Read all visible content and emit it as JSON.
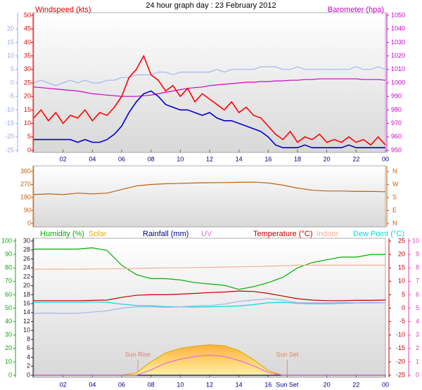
{
  "title": "24 hour graph day : 23 February 2012",
  "chart_data": [
    {
      "type": "line",
      "ylabel": "Windspeed (kts)",
      "y2label": "Barometer (hpa)",
      "x": [
        0,
        0.5,
        1,
        1.5,
        2,
        2.5,
        3,
        3.5,
        4,
        4.5,
        5,
        5.5,
        6,
        6.5,
        7,
        7.5,
        8,
        8.5,
        9,
        9.5,
        10,
        10.5,
        11,
        11.5,
        12,
        12.5,
        13,
        13.5,
        14,
        14.5,
        15,
        15.5,
        16,
        16.5,
        17,
        17.5,
        18,
        18.5,
        19,
        19.5,
        20,
        20.5,
        21,
        21.5,
        22,
        22.5,
        23,
        23.5,
        24
      ],
      "xlim": [
        0,
        24
      ],
      "xticks": [
        {
          "value": 2,
          "label": "02"
        },
        {
          "value": 4,
          "label": "04"
        },
        {
          "value": 6,
          "label": "06"
        },
        {
          "value": 8,
          "label": "08"
        },
        10,
        12,
        14,
        16,
        18,
        20,
        22,
        {
          "value": 24,
          "label": "00"
        }
      ],
      "ylim": [
        0,
        50
      ],
      "yticks": [
        0,
        5,
        10,
        15,
        20,
        25,
        30,
        35,
        40,
        45,
        50
      ],
      "ycolor": "#e00000",
      "y2lim": [
        950,
        1050
      ],
      "y2ticks": [
        950,
        960,
        970,
        980,
        990,
        1000,
        1010,
        1020,
        1030,
        1040,
        1050
      ],
      "y2color": "#cc00cc",
      "y3lim": [
        -25,
        25
      ],
      "y3ticks": [
        20,
        15,
        10,
        5,
        0,
        -5,
        -10,
        -15,
        -20,
        -25
      ],
      "y3color": "#9aa8e8",
      "series": [
        {
          "color": "#aab4ee",
          "axis": "y3",
          "values": [
            0,
            1,
            0,
            -1,
            0,
            1,
            0,
            1,
            0,
            0,
            1,
            1,
            2,
            2,
            3,
            3,
            3,
            4,
            4,
            3,
            4,
            4,
            4,
            4,
            4,
            5,
            4,
            5,
            5,
            5,
            5,
            6,
            6,
            6,
            5,
            5,
            6,
            5,
            5,
            5,
            5,
            5,
            5,
            5,
            6,
            5,
            5,
            6,
            5
          ]
        },
        {
          "color": "#cc00cc",
          "axis": "y2",
          "values": [
            997,
            996.5,
            996,
            995.5,
            995,
            994.5,
            994,
            993,
            992,
            991.5,
            991,
            990.5,
            990,
            990,
            990,
            990.5,
            991,
            992,
            993,
            994,
            995,
            996,
            996.5,
            997,
            998,
            998.5,
            999,
            999.5,
            1000,
            1000.5,
            1000.5,
            1001,
            1001,
            1001.5,
            1001.5,
            1002,
            1002,
            1002.5,
            1002.5,
            1003,
            1003,
            1003,
            1003,
            1003,
            1003,
            1002.5,
            1002.5,
            1002.5,
            1002
          ]
        },
        {
          "color": "#ff0000",
          "axis": "y",
          "values": [
            12,
            15,
            11,
            14,
            10,
            13,
            12,
            15,
            11,
            14,
            13,
            16,
            20,
            27,
            30,
            35,
            28,
            26,
            22,
            24,
            20,
            23,
            18,
            21,
            19,
            17,
            15,
            18,
            14,
            16,
            13,
            12,
            9,
            6,
            4,
            7,
            3,
            5,
            4,
            6,
            3,
            4,
            3,
            5,
            3,
            4,
            2,
            5,
            2
          ]
        },
        {
          "color": "#0000cc",
          "axis": "y",
          "values": [
            4,
            4,
            4,
            4,
            4,
            4,
            3,
            4,
            3,
            3,
            4,
            6,
            9,
            14,
            18,
            21,
            22,
            20,
            17,
            16,
            15,
            15,
            14,
            13,
            14,
            12,
            11,
            11,
            10,
            9,
            8,
            7,
            5,
            2,
            1,
            1,
            1,
            2,
            1,
            1,
            1,
            1,
            1,
            2,
            1,
            1,
            1,
            1,
            1
          ]
        }
      ]
    },
    {
      "type": "line",
      "x": [
        0,
        1,
        2,
        3,
        4,
        5,
        6,
        7,
        8,
        9,
        10,
        11,
        12,
        13,
        14,
        15,
        16,
        17,
        18,
        19,
        20,
        21,
        22,
        23,
        24
      ],
      "xlim": [
        0,
        24
      ],
      "ylim": [
        0,
        360
      ],
      "yticks": [
        0,
        90,
        180,
        270,
        360
      ],
      "ycolor": "#c06010",
      "y2lim": [
        0,
        360
      ],
      "y2ticks": [
        {
          "value": 0,
          "label": "N"
        },
        {
          "value": 90,
          "label": "E"
        },
        {
          "value": 180,
          "label": "S"
        },
        {
          "value": 270,
          "label": "W"
        },
        {
          "value": 360,
          "label": "N"
        }
      ],
      "y2color": "#c06010",
      "series": [
        {
          "color": "#c06010",
          "axis": "y",
          "values": [
            200,
            205,
            200,
            210,
            205,
            210,
            235,
            260,
            270,
            275,
            278,
            280,
            282,
            283,
            285,
            286,
            280,
            265,
            245,
            230,
            225,
            225,
            222,
            222,
            220
          ]
        }
      ]
    },
    {
      "type": "line",
      "x": [
        0,
        1,
        2,
        3,
        4,
        5,
        6,
        7,
        8,
        9,
        10,
        11,
        12,
        13,
        14,
        15,
        16,
        17,
        18,
        19,
        20,
        21,
        22,
        23,
        24
      ],
      "xlim": [
        0,
        24
      ],
      "xticks": [
        {
          "value": 2,
          "label": "02"
        },
        {
          "value": 4,
          "label": "04"
        },
        {
          "value": 6,
          "label": "06"
        },
        {
          "value": 8,
          "label": "08"
        },
        10,
        12,
        14,
        16,
        {
          "value": 17.3,
          "label": "Sun Set"
        },
        20,
        22,
        {
          "value": 24,
          "label": "00"
        }
      ],
      "ylim": [
        0,
        100
      ],
      "yticks": [
        0,
        10,
        20,
        30,
        40,
        50,
        60,
        70,
        80,
        90,
        100
      ],
      "ycolor": "#00b000",
      "y3lim": [
        0,
        30
      ],
      "y3ticks": [
        0,
        2,
        4,
        6,
        8,
        10,
        12,
        14,
        16,
        18,
        20,
        22,
        24,
        26,
        28,
        30
      ],
      "y3color": "#202020",
      "y2lim": [
        -25,
        25
      ],
      "y2ticks": [
        -25,
        -20,
        -15,
        -10,
        -5,
        0,
        5,
        10,
        15,
        20,
        25
      ],
      "y2color": "#c00000",
      "y4lim": [
        0,
        10
      ],
      "y4ticks": [
        0,
        1,
        2,
        3,
        4,
        5,
        6,
        7,
        8,
        9,
        10
      ],
      "y4color": "#e040c0",
      "annotations": [
        {
          "text": "Sun Rise",
          "x": 7.1
        },
        {
          "text": "Sun Set",
          "x": 17.3
        }
      ],
      "series": [
        {
          "name": "Humidity (%)",
          "color": "#00b000",
          "axis": "y",
          "values": [
            94,
            94,
            94,
            94,
            95,
            93,
            82,
            75,
            72,
            72,
            71,
            69,
            68,
            67,
            64,
            66,
            69,
            73,
            80,
            84,
            86,
            88,
            88,
            90,
            90
          ]
        },
        {
          "name": "Solar",
          "color": "#e0b000",
          "axis": "y3",
          "area": true,
          "values": [
            0,
            0,
            0,
            0,
            0,
            0,
            0,
            0.5,
            3,
            5,
            6,
            6.5,
            6.8,
            6.6,
            5.5,
            3.5,
            1,
            0,
            0,
            0,
            0,
            0,
            0,
            0,
            0
          ]
        },
        {
          "name": "Rainfall (mm)",
          "color": "#000080",
          "axis": "y3",
          "values": [
            0,
            0,
            0,
            0,
            0,
            0,
            0,
            0,
            0,
            0,
            0,
            0,
            0,
            0,
            0,
            0,
            0,
            0,
            0,
            0,
            0,
            0,
            0,
            0,
            0
          ]
        },
        {
          "name": "UV",
          "color": "#e070d0",
          "axis": "y4",
          "values": [
            0,
            0,
            0,
            0,
            0,
            0,
            0,
            0,
            0.4,
            0.9,
            1.2,
            1.4,
            1.5,
            1.4,
            1.1,
            0.7,
            0.2,
            0,
            0,
            0,
            0,
            0,
            0,
            0,
            0
          ]
        },
        {
          "name": "Temperature (°C)",
          "color": "#c00000",
          "axis": "y2",
          "values": [
            2.8,
            2.8,
            2.8,
            2.8,
            2.9,
            3,
            4,
            4.8,
            5,
            5,
            5.2,
            5.5,
            5.8,
            6,
            6.4,
            6.2,
            5.5,
            4.5,
            3.5,
            3,
            2.8,
            2.8,
            2.9,
            2.9,
            3
          ]
        },
        {
          "name": "Indoor",
          "color": "#f4b090",
          "axis": "y2",
          "values": [
            14.5,
            14.5,
            14.5,
            14.5,
            14.6,
            14.6,
            14.7,
            14.8,
            14.9,
            15,
            15,
            15.1,
            15.2,
            15.3,
            15.4,
            15.5,
            15.6,
            15.8,
            16,
            16,
            16,
            16,
            16,
            16,
            16
          ]
        },
        {
          "name": "Dew Point (°C)",
          "color": "#00dddd",
          "axis": "y2",
          "values": [
            2.2,
            2.2,
            2.2,
            2.2,
            2.3,
            2.2,
            1.5,
            1,
            0.9,
            0.6,
            0.5,
            0.4,
            0.5,
            0.6,
            0.8,
            1.3,
            2,
            2.2,
            1.8,
            1.6,
            1.6,
            1.8,
            1.9,
            2,
            2
          ]
        },
        {
          "color": "#aab0f0",
          "axis": "y2",
          "values": [
            -2,
            -1.8,
            -2,
            -1.9,
            -1.5,
            -1,
            0,
            0.5,
            0.5,
            0.3,
            0.5,
            0.8,
            1,
            1.5,
            2.5,
            3,
            3.5,
            3,
            2,
            2,
            2,
            2.2,
            2,
            2.2,
            2
          ]
        }
      ]
    }
  ]
}
